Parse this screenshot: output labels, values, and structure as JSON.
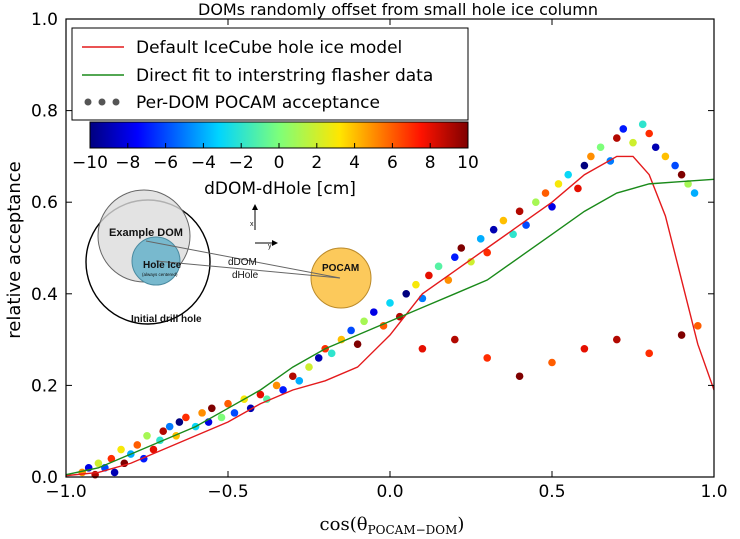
{
  "chart_data": {
    "type": "scatter",
    "title": "DOMs randomly offset from small hole ice column",
    "xlabel_base": "cos(θ",
    "xlabel_sub": "POCAM−DOM",
    "xlabel_close": ")",
    "ylabel": "relative acceptance",
    "xlim": [
      -1.0,
      1.0
    ],
    "ylim": [
      0.0,
      1.0
    ],
    "xticks": [
      -1.0,
      -0.5,
      0.0,
      0.5,
      1.0
    ],
    "xtick_labels": [
      "−1.0",
      "−0.5",
      "0.0",
      "0.5",
      "1.0"
    ],
    "yticks": [
      0.0,
      0.2,
      0.4,
      0.6,
      0.8,
      1.0
    ],
    "ytick_labels": [
      "0.0",
      "0.2",
      "0.4",
      "0.6",
      "0.8",
      "1.0"
    ],
    "legend": {
      "placement": "top-left",
      "entries": [
        {
          "label": "Default IceCube hole ice model",
          "color": "#e41a1c",
          "kind": "line"
        },
        {
          "label": "Direct fit to interstring flasher data",
          "color": "#1a8a1a",
          "kind": "line"
        },
        {
          "label": "Per-DOM POCAM acceptance",
          "color": "#555555",
          "kind": "points"
        }
      ]
    },
    "colorbar": {
      "label": "dDOM-dHole [cm]",
      "range": [
        -10,
        10
      ],
      "ticks": [
        -10,
        -8,
        -6,
        -4,
        -2,
        0,
        2,
        4,
        6,
        8,
        10
      ],
      "tick_labels": [
        "−10",
        "−8",
        "−6",
        "−4",
        "−2",
        "0",
        "2",
        "4",
        "6",
        "8",
        "10"
      ],
      "colormap": "jet"
    },
    "series": [
      {
        "name": "Default IceCube hole ice model",
        "color": "#e41a1c",
        "x": [
          -1.0,
          -0.9,
          -0.8,
          -0.7,
          -0.6,
          -0.5,
          -0.4,
          -0.3,
          -0.2,
          -0.1,
          0.0,
          0.1,
          0.2,
          0.3,
          0.4,
          0.5,
          0.6,
          0.7,
          0.75,
          0.8,
          0.85,
          0.9,
          0.95,
          1.0
        ],
        "y": [
          0.003,
          0.01,
          0.03,
          0.06,
          0.09,
          0.12,
          0.16,
          0.19,
          0.21,
          0.24,
          0.31,
          0.4,
          0.45,
          0.5,
          0.55,
          0.6,
          0.66,
          0.7,
          0.7,
          0.66,
          0.57,
          0.43,
          0.29,
          0.19
        ]
      },
      {
        "name": "Direct fit to interstring flasher data",
        "color": "#1a8a1a",
        "x": [
          -1.0,
          -0.9,
          -0.8,
          -0.7,
          -0.6,
          -0.5,
          -0.4,
          -0.3,
          -0.2,
          -0.1,
          0.0,
          0.1,
          0.2,
          0.3,
          0.4,
          0.5,
          0.6,
          0.7,
          0.8,
          0.9,
          1.0
        ],
        "y": [
          0.005,
          0.02,
          0.05,
          0.08,
          0.11,
          0.15,
          0.19,
          0.24,
          0.28,
          0.31,
          0.34,
          0.37,
          0.4,
          0.43,
          0.48,
          0.53,
          0.58,
          0.62,
          0.64,
          0.645,
          0.65
        ]
      }
    ],
    "points": [
      [
        -0.95,
        0.01,
        5
      ],
      [
        -0.93,
        0.02,
        -8
      ],
      [
        -0.91,
        0.005,
        9
      ],
      [
        -0.9,
        0.03,
        2
      ],
      [
        -0.88,
        0.02,
        -6
      ],
      [
        -0.86,
        0.04,
        7
      ],
      [
        -0.85,
        0.01,
        -9
      ],
      [
        -0.83,
        0.06,
        3
      ],
      [
        -0.82,
        0.03,
        10
      ],
      [
        -0.8,
        0.05,
        -4
      ],
      [
        -0.78,
        0.07,
        6
      ],
      [
        -0.76,
        0.04,
        -7
      ],
      [
        -0.75,
        0.09,
        1
      ],
      [
        -0.73,
        0.06,
        8
      ],
      [
        -0.71,
        0.08,
        -2
      ],
      [
        -0.7,
        0.1,
        9
      ],
      [
        -0.68,
        0.11,
        -5
      ],
      [
        -0.66,
        0.09,
        4
      ],
      [
        -0.65,
        0.12,
        -10
      ],
      [
        -0.63,
        0.13,
        7
      ],
      [
        -0.6,
        0.11,
        -3
      ],
      [
        -0.58,
        0.14,
        5
      ],
      [
        -0.56,
        0.12,
        -8
      ],
      [
        -0.55,
        0.15,
        10
      ],
      [
        -0.52,
        0.13,
        0
      ],
      [
        -0.5,
        0.16,
        6
      ],
      [
        -0.48,
        0.14,
        -6
      ],
      [
        -0.45,
        0.17,
        3
      ],
      [
        -0.43,
        0.15,
        -9
      ],
      [
        -0.4,
        0.18,
        8
      ],
      [
        -0.38,
        0.17,
        -1
      ],
      [
        -0.35,
        0.2,
        5
      ],
      [
        -0.33,
        0.19,
        -7
      ],
      [
        -0.3,
        0.22,
        9
      ],
      [
        -0.28,
        0.21,
        -4
      ],
      [
        -0.25,
        0.24,
        2
      ],
      [
        -0.22,
        0.26,
        -9
      ],
      [
        -0.2,
        0.28,
        7
      ],
      [
        -0.18,
        0.27,
        -2
      ],
      [
        -0.15,
        0.3,
        4
      ],
      [
        -0.12,
        0.32,
        -6
      ],
      [
        -0.1,
        0.29,
        10
      ],
      [
        -0.08,
        0.34,
        1
      ],
      [
        -0.05,
        0.36,
        -8
      ],
      [
        -0.02,
        0.33,
        6
      ],
      [
        0.0,
        0.38,
        -3
      ],
      [
        0.03,
        0.35,
        9
      ],
      [
        0.05,
        0.4,
        -10
      ],
      [
        0.08,
        0.42,
        3
      ],
      [
        0.1,
        0.39,
        -5
      ],
      [
        0.12,
        0.44,
        8
      ],
      [
        0.15,
        0.46,
        -1
      ],
      [
        0.18,
        0.43,
        5
      ],
      [
        0.2,
        0.48,
        -7
      ],
      [
        0.22,
        0.5,
        10
      ],
      [
        0.25,
        0.47,
        2
      ],
      [
        0.28,
        0.52,
        -4
      ],
      [
        0.3,
        0.49,
        7
      ],
      [
        0.32,
        0.54,
        -9
      ],
      [
        0.35,
        0.56,
        4
      ],
      [
        0.38,
        0.53,
        -2
      ],
      [
        0.4,
        0.58,
        9
      ],
      [
        0.42,
        0.55,
        -6
      ],
      [
        0.45,
        0.6,
        1
      ],
      [
        0.48,
        0.62,
        6
      ],
      [
        0.5,
        0.59,
        -8
      ],
      [
        0.52,
        0.64,
        3
      ],
      [
        0.55,
        0.66,
        -3
      ],
      [
        0.58,
        0.63,
        8
      ],
      [
        0.6,
        0.68,
        -10
      ],
      [
        0.62,
        0.7,
        5
      ],
      [
        0.65,
        0.72,
        0
      ],
      [
        0.68,
        0.69,
        -5
      ],
      [
        0.7,
        0.74,
        9
      ],
      [
        0.72,
        0.76,
        -7
      ],
      [
        0.75,
        0.73,
        2
      ],
      [
        0.78,
        0.77,
        -2
      ],
      [
        0.8,
        0.75,
        7
      ],
      [
        0.82,
        0.72,
        -9
      ],
      [
        0.85,
        0.7,
        4
      ],
      [
        0.88,
        0.68,
        -6
      ],
      [
        0.9,
        0.66,
        10
      ],
      [
        0.92,
        0.64,
        1
      ],
      [
        0.94,
        0.62,
        -4
      ],
      [
        0.1,
        0.28,
        8
      ],
      [
        0.2,
        0.3,
        9
      ],
      [
        0.3,
        0.26,
        7
      ],
      [
        0.4,
        0.22,
        10
      ],
      [
        0.5,
        0.25,
        6
      ],
      [
        0.6,
        0.28,
        8
      ],
      [
        0.7,
        0.3,
        9
      ],
      [
        0.8,
        0.27,
        7
      ],
      [
        0.9,
        0.31,
        10
      ],
      [
        0.95,
        0.33,
        6
      ]
    ]
  }
}
